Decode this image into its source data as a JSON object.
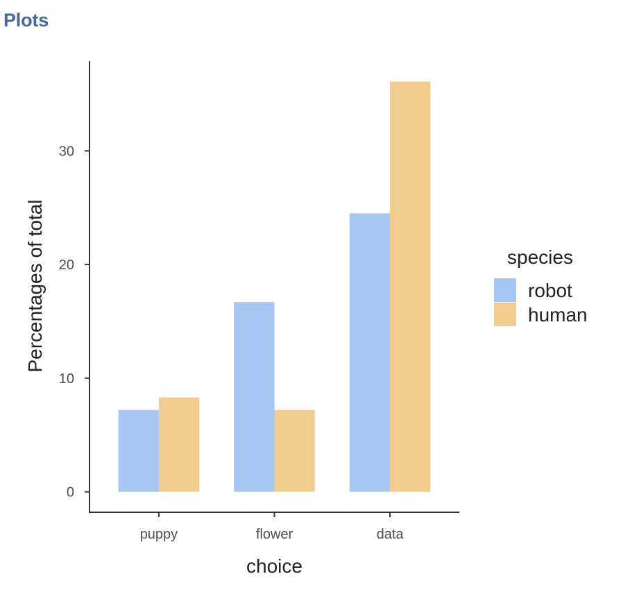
{
  "panel": {
    "title": "Plots"
  },
  "chart_data": {
    "type": "bar",
    "categories": [
      "puppy",
      "flower",
      "data"
    ],
    "series": [
      {
        "name": "robot",
        "values": [
          7.2,
          16.7,
          24.5
        ],
        "color": "#a8c6f2"
      },
      {
        "name": "human",
        "values": [
          8.3,
          7.2,
          36.1
        ],
        "color": "#f0cd8e"
      }
    ],
    "xlabel": "choice",
    "ylabel": "Percentages of total",
    "yticks": [
      0,
      10,
      20,
      30
    ],
    "ylim": [
      -1.8,
      37.9
    ],
    "legend": {
      "title": "species",
      "position": "right"
    },
    "grid": false
  }
}
